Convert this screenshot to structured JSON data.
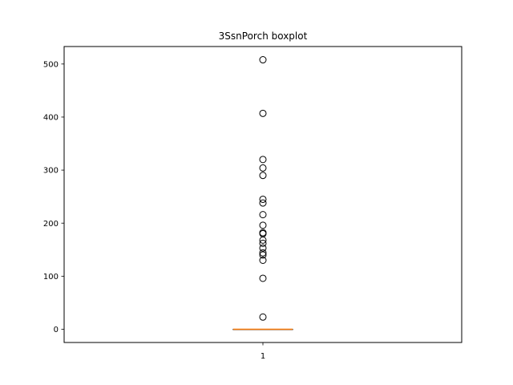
{
  "chart_data": {
    "type": "boxplot",
    "title": "3SsnPorch boxplot",
    "xlabel": "",
    "ylabel": "",
    "categories": [
      "1"
    ],
    "ylim": [
      -25,
      533
    ],
    "yticks": [
      0,
      100,
      200,
      300,
      400,
      500
    ],
    "grid": false,
    "box": {
      "min": 0,
      "q1": 0,
      "median": 0,
      "q3": 0,
      "max": 0
    },
    "outliers": [
      23,
      96,
      130,
      140,
      144,
      153,
      162,
      168,
      180,
      182,
      196,
      216,
      238,
      245,
      290,
      304,
      320,
      407,
      508
    ],
    "colors": {
      "median": "#ff7f0e",
      "box": "#000000",
      "outlier_edge": "#000000"
    }
  }
}
